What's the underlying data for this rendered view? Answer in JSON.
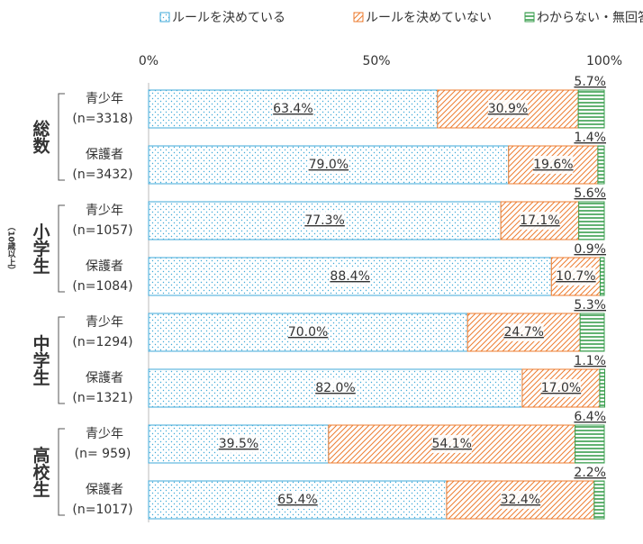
{
  "chart_data": {
    "type": "stacked-barh",
    "categories": [
      "青少年",
      "保護者",
      "青少年",
      "保護者",
      "青少年",
      "保護者",
      "青少年",
      "保護者"
    ],
    "sample_sizes": [
      "(n=3318)",
      "(n=3432)",
      "(n=1057)",
      "(n=1084)",
      "(n=1294)",
      "(n=1321)",
      "(n= 959)",
      "(n=1017)"
    ],
    "groups": [
      {
        "label": "総数"
      },
      {
        "label": "小学生",
        "note": "（10歳以上）"
      },
      {
        "label": "中学生"
      },
      {
        "label": "高校生"
      }
    ],
    "series": [
      {
        "name": "ルールを決めている",
        "color": "#3fa9d8",
        "pattern": "dots",
        "values": [
          63.4,
          79.0,
          77.3,
          88.4,
          70.0,
          82.0,
          39.5,
          65.4
        ],
        "value_labels": [
          "63.4%",
          "79.0%",
          "77.3%",
          "88.4%",
          "70.0%",
          "82.0%",
          "39.5%",
          "65.4%"
        ]
      },
      {
        "name": "ルールを決めていない",
        "color": "#ed7d31",
        "pattern": "hatch",
        "values": [
          30.9,
          19.6,
          17.1,
          10.7,
          24.7,
          17.0,
          54.1,
          32.4
        ],
        "value_labels": [
          "30.9%",
          "19.6%",
          "17.1%",
          "10.7%",
          "24.7%",
          "17.0%",
          "54.1%",
          "32.4%"
        ]
      },
      {
        "name": "わからない・無回答",
        "color": "#3a9e4e",
        "pattern": "lines",
        "values": [
          5.7,
          1.4,
          5.6,
          0.9,
          5.3,
          1.1,
          6.4,
          2.2
        ],
        "value_labels": [
          "5.7%",
          "1.4%",
          "5.6%",
          "0.9%",
          "5.3%",
          "1.1%",
          "6.4%",
          "2.2%"
        ]
      }
    ],
    "xlim": [
      0,
      100
    ],
    "xticks": [
      {
        "value": 0,
        "label": "0%"
      },
      {
        "value": 50,
        "label": "50%"
      },
      {
        "value": 100,
        "label": "100%"
      }
    ],
    "legend": "top"
  }
}
